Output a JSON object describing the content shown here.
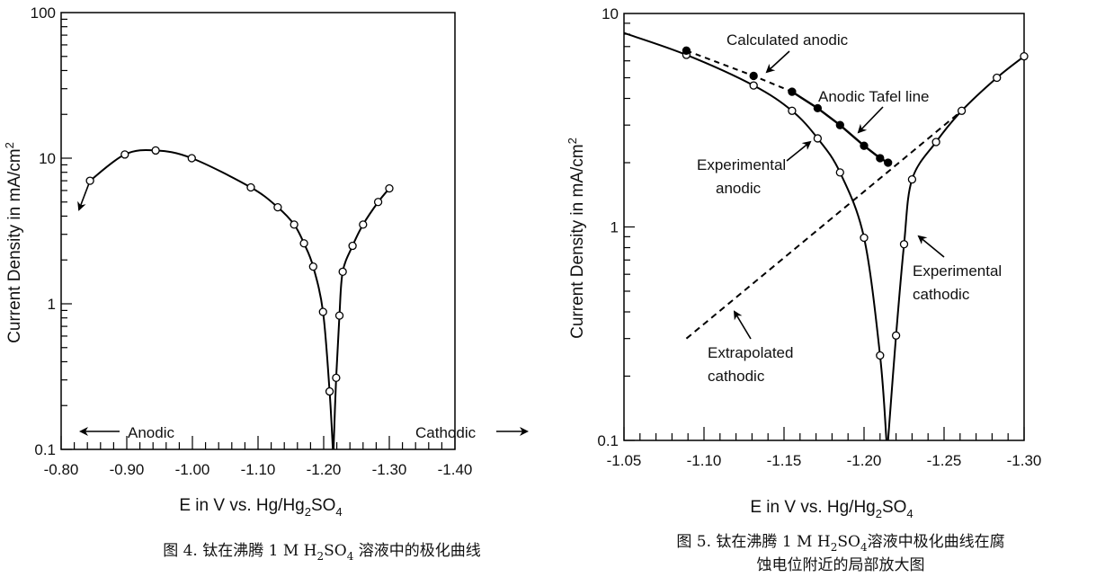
{
  "chart_data": [
    {
      "type": "line",
      "y_scale": "log",
      "xlabel": {
        "main": "E in V vs. Hg/Hg",
        "sub1": "2",
        "mid": "SO",
        "sub2": "4"
      },
      "ylabel": {
        "main": "Current Density in mA/cm",
        "sup": "2"
      },
      "xlim": [
        -0.8,
        -1.4
      ],
      "ylim": [
        0.1,
        100
      ],
      "x_ticks": [
        "-0.80",
        "-0.90",
        "-1.00",
        "-1.10",
        "-1.20",
        "-1.30",
        "-1.40"
      ],
      "y_ticks": [
        "100",
        "10",
        "1",
        "0.1"
      ],
      "grid": false,
      "annotations": [
        "Anodic",
        "Cathodic"
      ],
      "series": [
        {
          "marker": "open-circle",
          "anodic_branch": [
            [
              -0.844,
              7.0
            ],
            [
              -0.897,
              10.6
            ],
            [
              -0.944,
              11.3
            ],
            [
              -0.999,
              10.0
            ],
            [
              -1.089,
              6.3
            ],
            [
              -1.13,
              4.6
            ],
            [
              -1.155,
              3.5
            ],
            [
              -1.17,
              2.6
            ],
            [
              -1.184,
              1.8
            ],
            [
              -1.199,
              0.88
            ],
            [
              -1.209,
              0.25
            ]
          ],
          "cathodic_branch": [
            [
              -1.219,
              0.31
            ],
            [
              -1.224,
              0.83
            ],
            [
              -1.229,
              1.66
            ],
            [
              -1.244,
              2.5
            ],
            [
              -1.26,
              3.5
            ],
            [
              -1.283,
              5.0
            ],
            [
              -1.3,
              6.2
            ]
          ],
          "dip": [
            -1.214,
            0.1
          ]
        }
      ],
      "caption": {
        "pre": "图 4. 钛在沸腾 1 M H",
        "sub1": "2",
        "mid": "SO",
        "sub2": "4",
        "post": " 溶液中的极化曲线"
      }
    },
    {
      "type": "line",
      "y_scale": "log",
      "xlabel": {
        "main": "E in V vs. Hg/Hg",
        "sub1": "2",
        "mid": "SO",
        "sub2": "4"
      },
      "ylabel": {
        "main": "Current Density in mA/cm",
        "sup": "2"
      },
      "xlim": [
        -1.05,
        -1.3
      ],
      "ylim": [
        0.1,
        10
      ],
      "x_ticks": [
        "-1.05",
        "-1.10",
        "-1.15",
        "-1.20",
        "-1.25",
        "-1.30"
      ],
      "y_ticks": [
        "10",
        "1",
        "0.1"
      ],
      "grid": false,
      "annotations": [
        {
          "lines": [
            "Calculated anodic"
          ]
        },
        {
          "lines": [
            "Anodic Tafel line"
          ]
        },
        {
          "lines": [
            "Experimental",
            "anodic"
          ]
        },
        {
          "lines": [
            "Experimental",
            "cathodic"
          ]
        },
        {
          "lines": [
            "Extrapolated",
            "cathodic"
          ]
        }
      ],
      "series": [
        {
          "label_ref": "Experimental anodic / cathodic",
          "marker": "open-circle",
          "line_start": [
            -1.05,
            8.1
          ],
          "anodic_branch": [
            [
              -1.089,
              6.4
            ],
            [
              -1.131,
              4.6
            ],
            [
              -1.155,
              3.5
            ],
            [
              -1.171,
              2.6
            ],
            [
              -1.185,
              1.8
            ],
            [
              -1.2,
              0.89
            ],
            [
              -1.21,
              0.25
            ]
          ],
          "cathodic_branch": [
            [
              -1.22,
              0.31
            ],
            [
              -1.225,
              0.83
            ],
            [
              -1.23,
              1.67
            ],
            [
              -1.245,
              2.5
            ],
            [
              -1.261,
              3.5
            ],
            [
              -1.283,
              5.0
            ],
            [
              -1.3,
              6.3
            ]
          ],
          "dip": [
            -1.214,
            0.1
          ]
        },
        {
          "label_ref": "Calculated anodic / Anodic Tafel line",
          "marker": "filled-circle",
          "points": [
            [
              -1.089,
              6.7
            ],
            [
              -1.131,
              5.1
            ],
            [
              -1.155,
              4.3
            ],
            [
              -1.171,
              3.6
            ],
            [
              -1.185,
              3.0
            ],
            [
              -1.2,
              2.4
            ],
            [
              -1.21,
              2.1
            ],
            [
              -1.215,
              2.0
            ]
          ],
          "dashed_until_index": 2
        },
        {
          "label_ref": "Extrapolated cathodic",
          "style": "dashed",
          "points": [
            [
              -1.089,
              0.3
            ],
            [
              -1.261,
              3.5
            ]
          ]
        }
      ],
      "caption": {
        "pre": "图 5. 钛在沸腾 1 M H",
        "sub1": "2",
        "mid": "SO",
        "sub2": "4",
        "post": "溶液中极化曲线在腐",
        "line2": "蚀电位附近的局部放大图"
      }
    }
  ]
}
